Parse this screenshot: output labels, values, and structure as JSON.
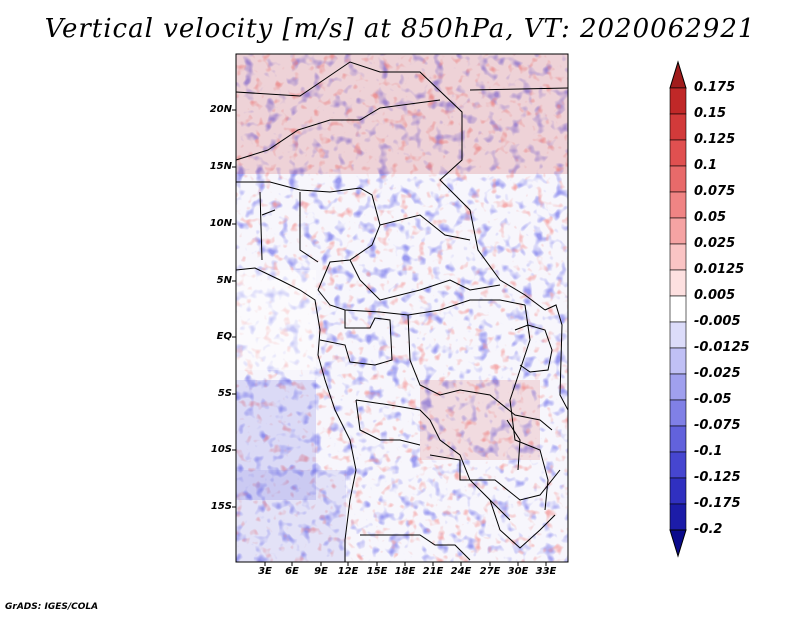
{
  "title": "Vertical velocity [m/s] at 850hPa, VT: 2020062921",
  "credit": "GrADS: IGES/COLA",
  "lat_labels": [
    "20N",
    "15N",
    "10N",
    "5N",
    "EQ",
    "5S",
    "10S",
    "15S"
  ],
  "lon_labels": [
    "3E",
    "6E",
    "9E",
    "12E",
    "15E",
    "18E",
    "21E",
    "24E",
    "27E",
    "30E",
    "33E"
  ],
  "colorbar": {
    "labels": [
      "0.175",
      "0.15",
      "0.125",
      "0.1",
      "0.075",
      "0.05",
      "0.025",
      "0.0125",
      "0.005",
      "-0.005",
      "-0.0125",
      "-0.025",
      "-0.05",
      "-0.075",
      "-0.1",
      "-0.125",
      "-0.175",
      "-0.2"
    ],
    "colors": [
      "#a01c1c",
      "#c02828",
      "#d23a3a",
      "#e05050",
      "#e86a6a",
      "#f08484",
      "#f5a3a3",
      "#fac4c4",
      "#fde0e0",
      "#ffffff",
      "#dcdcfa",
      "#c0c0f5",
      "#a0a0ee",
      "#8080e6",
      "#6262dc",
      "#4646d0",
      "#3030c0",
      "#1c1ca8",
      "#0a0a8c"
    ]
  }
}
